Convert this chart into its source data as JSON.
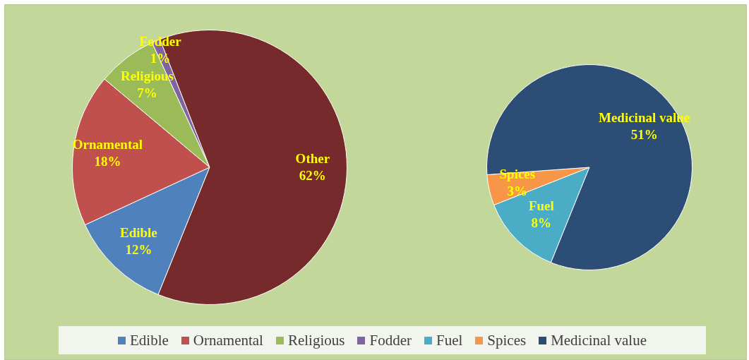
{
  "chart_data": [
    {
      "type": "pie",
      "categories": [
        "Edible",
        "Ornamental",
        "Religious",
        "Fodder",
        null
      ],
      "values": [
        12,
        18,
        7,
        1,
        62
      ],
      "colors": [
        "#4f81bd",
        "#c0504d",
        "#9bbb59",
        "#8064a2",
        "#772a2b"
      ],
      "annotations": [
        "Other"
      ],
      "value_labels": [
        "12%",
        "18%",
        "7%",
        "1%",
        "62%"
      ],
      "legend": "bottom"
    },
    {
      "type": "pie",
      "categories": [
        "Fuel",
        "Spices",
        "Medicinal value"
      ],
      "values": [
        8,
        3,
        51
      ],
      "colors": [
        "#4bacc6",
        "#f79646",
        "#2c4d76"
      ],
      "value_labels": [
        "8%",
        "3%",
        "51%"
      ],
      "legend": "bottom"
    }
  ]
}
